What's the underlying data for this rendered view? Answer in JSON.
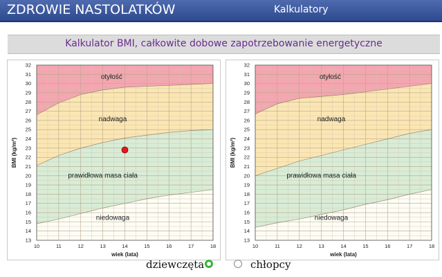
{
  "header": {
    "app_title": "ZDROWIE NASTOLATKÓW",
    "nav_item": "Kalkulatory"
  },
  "subtitle": "Kalkulator BMI, całkowite dobowe zapotrzebowanie energetyczne",
  "colors": {
    "header_bg": "#3f5ca3",
    "subtitle_text": "#6a2d8f",
    "obesity_zone": "#f4a6b0",
    "overweight_zone": "#fbe6b3",
    "normal_zone": "#d8ecd6",
    "underweight_zone": "#fdfdf5",
    "marker": "#e0191f",
    "selected_radio": "#35b53a"
  },
  "gender_options": {
    "girls": "dziewczęta",
    "boys": "chłopcy",
    "selected": "girls"
  },
  "chart_data": [
    {
      "type": "area",
      "panel": "girls",
      "xlabel": "wiek (lata)",
      "ylabel": "BMI (kg/m²)",
      "xlim": [
        10,
        18
      ],
      "ylim": [
        13,
        32
      ],
      "x_ticks": [
        10,
        11,
        12,
        13,
        14,
        15,
        16,
        17,
        18
      ],
      "y_ticks": [
        13,
        14,
        15,
        16,
        17,
        18,
        19,
        20,
        21,
        22,
        23,
        24,
        25,
        26,
        27,
        28,
        29,
        30,
        31,
        32
      ],
      "grid": true,
      "zones": [
        {
          "name": "otyłość",
          "label_x": 13.4,
          "label_y": 30.5
        },
        {
          "name": "nadwaga",
          "label_x": 13.45,
          "label_y": 25.9
        },
        {
          "name": "prawidłowa masa ciała",
          "label_x": 13.0,
          "label_y": 19.8
        },
        {
          "name": "niedowaga",
          "label_x": 13.45,
          "label_y": 15.2
        }
      ],
      "boundaries": {
        "obesity_threshold": {
          "x": [
            10,
            11,
            12,
            13,
            14,
            15,
            16,
            17,
            18
          ],
          "y": [
            26.6,
            27.9,
            28.8,
            29.3,
            29.6,
            29.7,
            29.8,
            29.9,
            30.0
          ]
        },
        "overweight_threshold": {
          "x": [
            10,
            11,
            12,
            13,
            14,
            15,
            16,
            17,
            18
          ],
          "y": [
            21.1,
            22.2,
            23.0,
            23.6,
            24.1,
            24.4,
            24.7,
            24.9,
            25.0
          ]
        },
        "underweight_threshold": {
          "x": [
            10,
            11,
            12,
            13,
            14,
            15,
            16,
            17,
            18
          ],
          "y": [
            14.8,
            15.3,
            15.9,
            16.5,
            17.0,
            17.5,
            17.9,
            18.2,
            18.5
          ]
        }
      },
      "marker": {
        "x": 14.0,
        "y": 22.8
      }
    },
    {
      "type": "area",
      "panel": "boys",
      "xlabel": "wiek (lata)",
      "ylabel": "BMI (kg/m²)",
      "xlim": [
        10,
        18
      ],
      "ylim": [
        13,
        32
      ],
      "x_ticks": [
        10,
        11,
        12,
        13,
        14,
        15,
        16,
        17,
        18
      ],
      "y_ticks": [
        13,
        14,
        15,
        16,
        17,
        18,
        19,
        20,
        21,
        22,
        23,
        24,
        25,
        26,
        27,
        28,
        29,
        30,
        31,
        32
      ],
      "grid": true,
      "zones": [
        {
          "name": "otyłość",
          "label_x": 13.4,
          "label_y": 30.5
        },
        {
          "name": "nadwaga",
          "label_x": 13.45,
          "label_y": 25.9
        },
        {
          "name": "prawidłowa masa ciała",
          "label_x": 13.0,
          "label_y": 19.8
        },
        {
          "name": "niedowaga",
          "label_x": 13.45,
          "label_y": 15.2
        }
      ],
      "boundaries": {
        "obesity_threshold": {
          "x": [
            10,
            11,
            12,
            13,
            14,
            15,
            16,
            17,
            18
          ],
          "y": [
            26.7,
            27.8,
            28.4,
            28.6,
            28.8,
            29.1,
            29.4,
            29.7,
            30.0
          ]
        },
        "overweight_threshold": {
          "x": [
            10,
            11,
            12,
            13,
            14,
            15,
            16,
            17,
            18
          ],
          "y": [
            20.0,
            20.8,
            21.6,
            22.2,
            22.8,
            23.4,
            24.0,
            24.6,
            25.0
          ]
        },
        "underweight_threshold": {
          "x": [
            10,
            11,
            12,
            13,
            14,
            15,
            16,
            17,
            18
          ],
          "y": [
            14.4,
            14.9,
            15.3,
            15.8,
            16.3,
            16.9,
            17.4,
            18.0,
            18.5
          ]
        }
      }
    }
  ]
}
